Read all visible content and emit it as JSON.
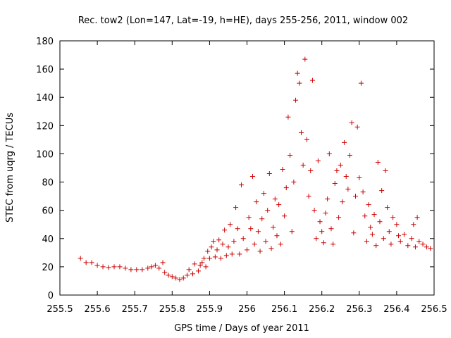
{
  "chart_data": {
    "type": "scatter",
    "title": "Rec. tow2 (Lon=147, Lat=-19, h=HE), days 255-256, 2011, window 002",
    "xlabel": "GPS time / Days of year 2011",
    "ylabel": "STEC from uqrg / TECUs",
    "xlim": [
      255.5,
      256.5
    ],
    "ylim": [
      0,
      180
    ],
    "xticks": [
      255.5,
      255.6,
      255.7,
      255.8,
      255.9,
      256,
      256.1,
      256.2,
      256.3,
      256.4,
      256.5
    ],
    "xtick_labels": [
      "255.5",
      "255.6",
      "255.7",
      "255.8",
      "255.9",
      "256",
      "256.1",
      "256.2",
      "256.3",
      "256.4",
      "256.5"
    ],
    "yticks": [
      0,
      20,
      40,
      60,
      80,
      100,
      120,
      140,
      160,
      180
    ],
    "ytick_labels": [
      "0",
      "20",
      "40",
      "60",
      "80",
      "100",
      "120",
      "140",
      "160",
      "180"
    ],
    "marker": "+",
    "color": "#cc0000",
    "grid": false,
    "legend": "none",
    "points": [
      [
        255.555,
        26
      ],
      [
        255.57,
        23
      ],
      [
        255.585,
        23
      ],
      [
        255.6,
        21
      ],
      [
        255.615,
        20
      ],
      [
        255.63,
        19.5
      ],
      [
        255.645,
        20
      ],
      [
        255.66,
        20
      ],
      [
        255.675,
        19
      ],
      [
        255.69,
        18
      ],
      [
        255.705,
        18
      ],
      [
        255.72,
        18
      ],
      [
        255.735,
        19
      ],
      [
        255.745,
        20
      ],
      [
        255.755,
        21
      ],
      [
        255.765,
        19
      ],
      [
        255.775,
        23
      ],
      [
        255.78,
        16
      ],
      [
        255.79,
        14
      ],
      [
        255.8,
        13
      ],
      [
        255.81,
        12
      ],
      [
        255.82,
        11
      ],
      [
        255.83,
        12
      ],
      [
        255.84,
        14
      ],
      [
        255.845,
        18
      ],
      [
        255.855,
        15
      ],
      [
        255.86,
        22
      ],
      [
        255.87,
        17
      ],
      [
        255.875,
        21
      ],
      [
        255.88,
        23
      ],
      [
        255.885,
        26
      ],
      [
        255.89,
        20
      ],
      [
        255.895,
        31
      ],
      [
        255.9,
        26
      ],
      [
        255.905,
        34
      ],
      [
        255.91,
        38
      ],
      [
        255.915,
        27
      ],
      [
        255.92,
        32
      ],
      [
        255.925,
        39
      ],
      [
        255.93,
        26
      ],
      [
        255.935,
        36
      ],
      [
        255.94,
        46
      ],
      [
        255.945,
        28
      ],
      [
        255.95,
        34
      ],
      [
        255.955,
        50
      ],
      [
        255.96,
        29
      ],
      [
        255.965,
        38
      ],
      [
        255.97,
        62
      ],
      [
        255.975,
        47
      ],
      [
        255.98,
        29
      ],
      [
        255.985,
        78
      ],
      [
        255.99,
        40
      ],
      [
        256.0,
        32
      ],
      [
        256.005,
        55
      ],
      [
        256.01,
        47
      ],
      [
        256.015,
        84
      ],
      [
        256.02,
        36
      ],
      [
        256.025,
        66
      ],
      [
        256.03,
        45
      ],
      [
        256.035,
        31
      ],
      [
        256.04,
        54
      ],
      [
        256.045,
        72
      ],
      [
        256.05,
        38
      ],
      [
        256.055,
        60
      ],
      [
        256.06,
        86
      ],
      [
        256.065,
        33
      ],
      [
        256.07,
        48
      ],
      [
        256.075,
        68
      ],
      [
        256.08,
        42
      ],
      [
        256.085,
        64
      ],
      [
        256.09,
        36
      ],
      [
        256.095,
        89
      ],
      [
        256.1,
        56
      ],
      [
        256.105,
        76
      ],
      [
        256.11,
        126
      ],
      [
        256.115,
        99
      ],
      [
        256.12,
        45
      ],
      [
        256.125,
        80
      ],
      [
        256.13,
        138
      ],
      [
        256.135,
        157
      ],
      [
        256.14,
        150
      ],
      [
        256.145,
        115
      ],
      [
        256.15,
        92
      ],
      [
        256.155,
        167
      ],
      [
        256.16,
        110
      ],
      [
        256.165,
        70
      ],
      [
        256.17,
        88
      ],
      [
        256.175,
        152
      ],
      [
        256.18,
        60
      ],
      [
        256.185,
        40
      ],
      [
        256.19,
        95
      ],
      [
        256.195,
        52
      ],
      [
        256.2,
        45
      ],
      [
        256.205,
        37
      ],
      [
        256.21,
        58
      ],
      [
        256.215,
        68
      ],
      [
        256.22,
        100
      ],
      [
        256.225,
        47
      ],
      [
        256.23,
        36
      ],
      [
        256.235,
        79
      ],
      [
        256.24,
        88
      ],
      [
        256.245,
        55
      ],
      [
        256.25,
        92
      ],
      [
        256.255,
        66
      ],
      [
        256.26,
        108
      ],
      [
        256.265,
        84
      ],
      [
        256.27,
        75
      ],
      [
        256.275,
        99
      ],
      [
        256.28,
        122
      ],
      [
        256.285,
        44
      ],
      [
        256.29,
        70
      ],
      [
        256.295,
        119
      ],
      [
        256.3,
        83
      ],
      [
        256.305,
        150
      ],
      [
        256.31,
        73
      ],
      [
        256.315,
        56
      ],
      [
        256.32,
        38
      ],
      [
        256.325,
        64
      ],
      [
        256.33,
        48
      ],
      [
        256.335,
        43
      ],
      [
        256.34,
        57
      ],
      [
        256.345,
        35
      ],
      [
        256.35,
        94
      ],
      [
        256.355,
        52
      ],
      [
        256.36,
        74
      ],
      [
        256.365,
        40
      ],
      [
        256.37,
        88
      ],
      [
        256.375,
        62
      ],
      [
        256.38,
        45
      ],
      [
        256.385,
        36
      ],
      [
        256.39,
        55
      ],
      [
        256.4,
        50
      ],
      [
        256.405,
        42
      ],
      [
        256.41,
        38
      ],
      [
        256.42,
        43
      ],
      [
        256.43,
        35
      ],
      [
        256.44,
        40
      ],
      [
        256.445,
        50
      ],
      [
        256.45,
        34
      ],
      [
        256.455,
        55
      ],
      [
        256.46,
        38
      ],
      [
        256.47,
        36
      ],
      [
        256.48,
        34
      ],
      [
        256.49,
        33
      ]
    ]
  }
}
